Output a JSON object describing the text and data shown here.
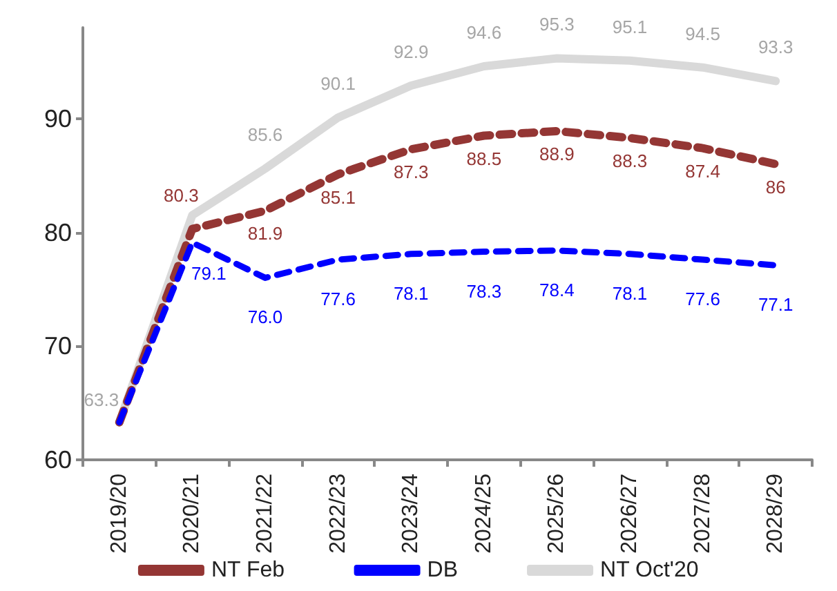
{
  "chart_data": {
    "type": "line",
    "categories": [
      "2019/20",
      "2020/21",
      "2021/22",
      "2022/23",
      "2023/24",
      "2024/25",
      "2025/26",
      "2026/27",
      "2027/28",
      "2028/29"
    ],
    "series": [
      {
        "name": "NT Oct'20",
        "color": "#d9d9d9",
        "line_style": "solid",
        "values": [
          63.3,
          81.5,
          85.6,
          90.1,
          92.9,
          94.6,
          95.3,
          95.1,
          94.5,
          93.3
        ],
        "value_labels": [
          "63.3",
          null,
          "85.6",
          "90.1",
          "92.9",
          "94.6",
          "95.3",
          "95.1",
          "94.5",
          "93.3"
        ]
      },
      {
        "name": "NT Feb",
        "color": "#943634",
        "line_style": "dashed",
        "values": [
          63.3,
          80.3,
          81.9,
          85.1,
          87.3,
          88.5,
          88.9,
          88.3,
          87.4,
          86
        ],
        "value_labels": [
          null,
          "80.3",
          "81.9",
          "85.1",
          "87.3",
          "88.5",
          "88.9",
          "88.3",
          "87.4",
          "86"
        ]
      },
      {
        "name": "DB",
        "color": "#0000ff",
        "line_style": "dashed",
        "values": [
          63.3,
          79.1,
          76.0,
          77.6,
          78.1,
          78.3,
          78.4,
          78.1,
          77.6,
          77.1
        ],
        "value_labels": [
          null,
          "79.1",
          "76.0",
          "77.6",
          "78.1",
          "78.3",
          "78.4",
          "78.1",
          "77.6",
          "77.1"
        ]
      }
    ],
    "ylim": [
      60,
      98
    ],
    "yticks": [
      60,
      70,
      80,
      90
    ],
    "grid": false,
    "legend": "bottom",
    "marker": "none"
  }
}
